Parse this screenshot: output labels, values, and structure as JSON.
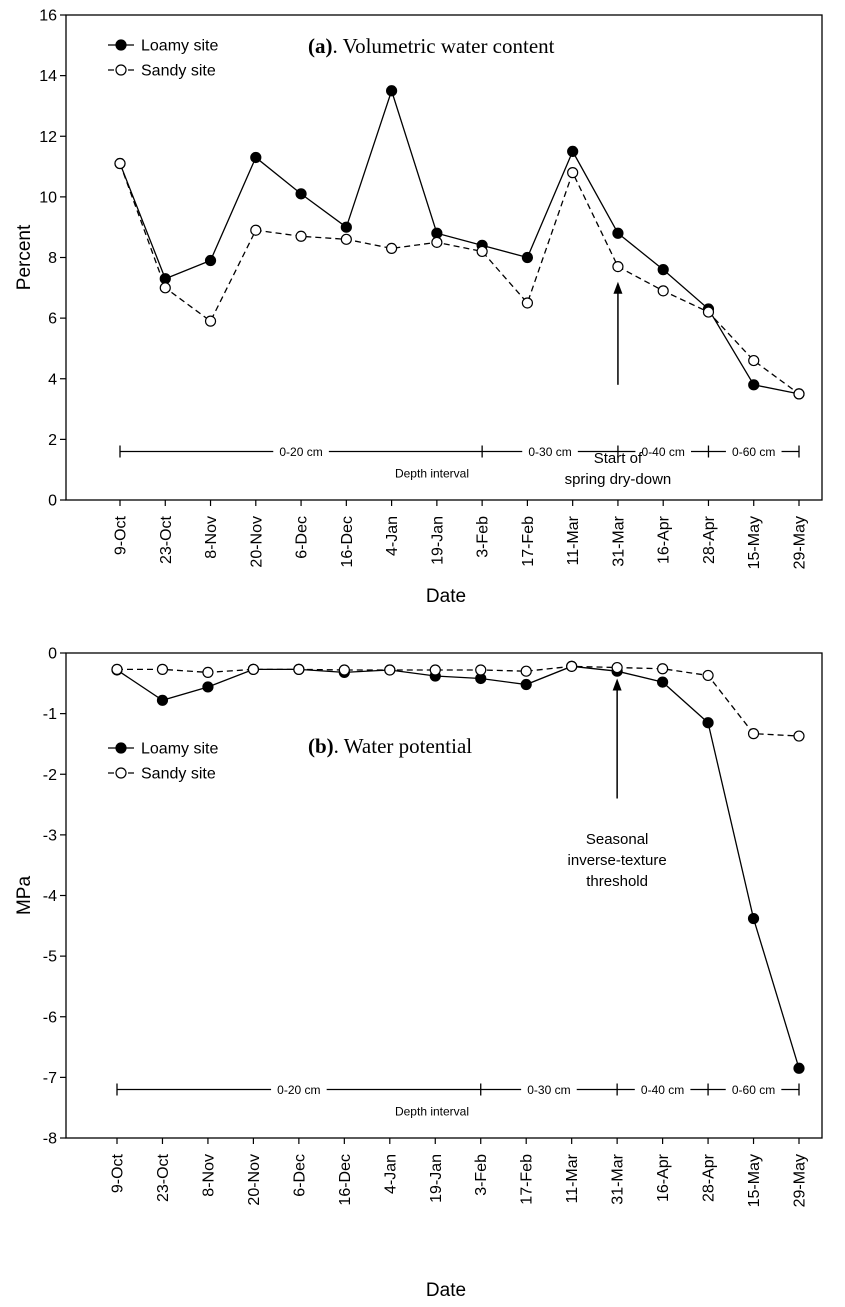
{
  "chart_data": [
    {
      "type": "line",
      "title_prefix": "(a)",
      "title": ". Volumetric water content",
      "xlabel": "Date",
      "ylabel": "Percent",
      "ylim": [
        0,
        16
      ],
      "yticks": [
        0,
        2,
        4,
        6,
        8,
        10,
        12,
        14,
        16
      ],
      "categories": [
        "9-Oct",
        "23-Oct",
        "8-Nov",
        "20-Nov",
        "6-Dec",
        "16-Dec",
        "4-Jan",
        "19-Jan",
        "3-Feb",
        "17-Feb",
        "11-Mar",
        "31-Mar",
        "16-Apr",
        "28-Apr",
        "15-May",
        "29-May"
      ],
      "series": [
        {
          "name": "Loamy site",
          "marker": "filled",
          "dash": "solid",
          "values": [
            11.1,
            7.3,
            7.9,
            11.3,
            10.1,
            9.0,
            13.5,
            8.8,
            8.4,
            8.0,
            11.5,
            8.8,
            7.6,
            6.3,
            3.8,
            3.5
          ]
        },
        {
          "name": "Sandy site",
          "marker": "open",
          "dash": "dashed",
          "values": [
            11.1,
            7.0,
            5.9,
            8.9,
            8.7,
            8.6,
            8.3,
            8.5,
            8.2,
            6.5,
            10.8,
            7.7,
            6.9,
            6.2,
            4.6,
            3.5
          ]
        }
      ],
      "legend": "top-left",
      "annotation": {
        "lines": [
          "Start of",
          "spring dry-down"
        ],
        "category": "31-Mar",
        "arrow_from": 3.8,
        "arrow_to": 7.2
      },
      "depth_axis": {
        "y": 1.6,
        "label": "Depth interval",
        "segments": [
          {
            "label": "0-20 cm",
            "from": "9-Oct",
            "to": "3-Feb"
          },
          {
            "label": "0-30 cm",
            "from": "3-Feb",
            "to": "31-Mar"
          },
          {
            "label": "0-40 cm",
            "from": "31-Mar",
            "to": "28-Apr"
          },
          {
            "label": "0-60 cm",
            "from": "28-Apr",
            "to": "29-May"
          }
        ]
      }
    },
    {
      "type": "line",
      "title_prefix": "(b)",
      "title": ". Water potential",
      "xlabel": "Date",
      "ylabel": "MPa",
      "ylim": [
        -8,
        0
      ],
      "yticks": [
        0,
        -1,
        -2,
        -3,
        -4,
        -5,
        -6,
        -7,
        -8
      ],
      "categories": [
        "9-Oct",
        "23-Oct",
        "8-Nov",
        "20-Nov",
        "6-Dec",
        "16-Dec",
        "4-Jan",
        "19-Jan",
        "3-Feb",
        "17-Feb",
        "11-Mar",
        "31-Mar",
        "16-Apr",
        "28-Apr",
        "15-May",
        "29-May"
      ],
      "series": [
        {
          "name": "Loamy site",
          "marker": "filled",
          "dash": "solid",
          "values": [
            -0.28,
            -0.78,
            -0.56,
            -0.27,
            -0.27,
            -0.32,
            -0.28,
            -0.38,
            -0.42,
            -0.52,
            -0.22,
            -0.3,
            -0.48,
            -1.15,
            -4.38,
            -6.85
          ]
        },
        {
          "name": "Sandy site",
          "marker": "open",
          "dash": "dashed",
          "values": [
            -0.27,
            -0.27,
            -0.32,
            -0.27,
            -0.27,
            -0.28,
            -0.28,
            -0.28,
            -0.28,
            -0.3,
            -0.22,
            -0.24,
            -0.26,
            -0.37,
            -1.33,
            -1.37
          ]
        }
      ],
      "legend": "upper-left",
      "annotation": {
        "lines": [
          "Seasonal",
          "inverse-texture",
          "threshold"
        ],
        "category": "31-Mar",
        "arrow_from": -2.4,
        "arrow_to": -0.42
      },
      "depth_axis": {
        "y": -7.2,
        "label": "Depth interval",
        "segments": [
          {
            "label": "0-20 cm",
            "from": "9-Oct",
            "to": "3-Feb"
          },
          {
            "label": "0-30 cm",
            "from": "3-Feb",
            "to": "31-Mar"
          },
          {
            "label": "0-40 cm",
            "from": "31-Mar",
            "to": "28-Apr"
          },
          {
            "label": "0-60 cm",
            "from": "28-Apr",
            "to": "29-May"
          }
        ]
      }
    }
  ]
}
